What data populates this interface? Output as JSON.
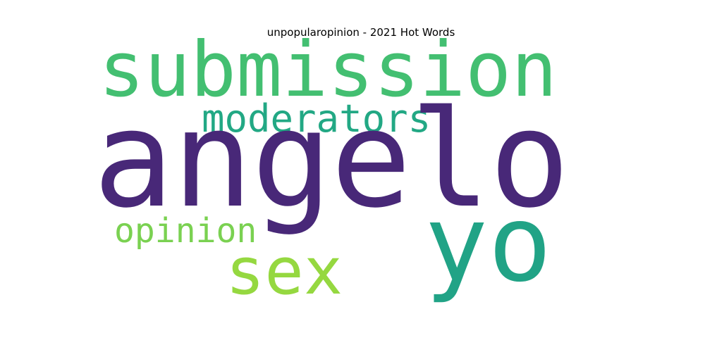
{
  "title": "unpopularopinion - 2021 Hot Words",
  "words": [
    {
      "text": "submission",
      "color": "#43bf71"
    },
    {
      "text": "moderators",
      "color": "#22a884"
    },
    {
      "text": "angelo",
      "color": "#482878"
    },
    {
      "text": "opinion",
      "color": "#7ad151"
    },
    {
      "text": "sex",
      "color": "#95d840"
    },
    {
      "text": "yo",
      "color": "#21a386"
    }
  ]
}
